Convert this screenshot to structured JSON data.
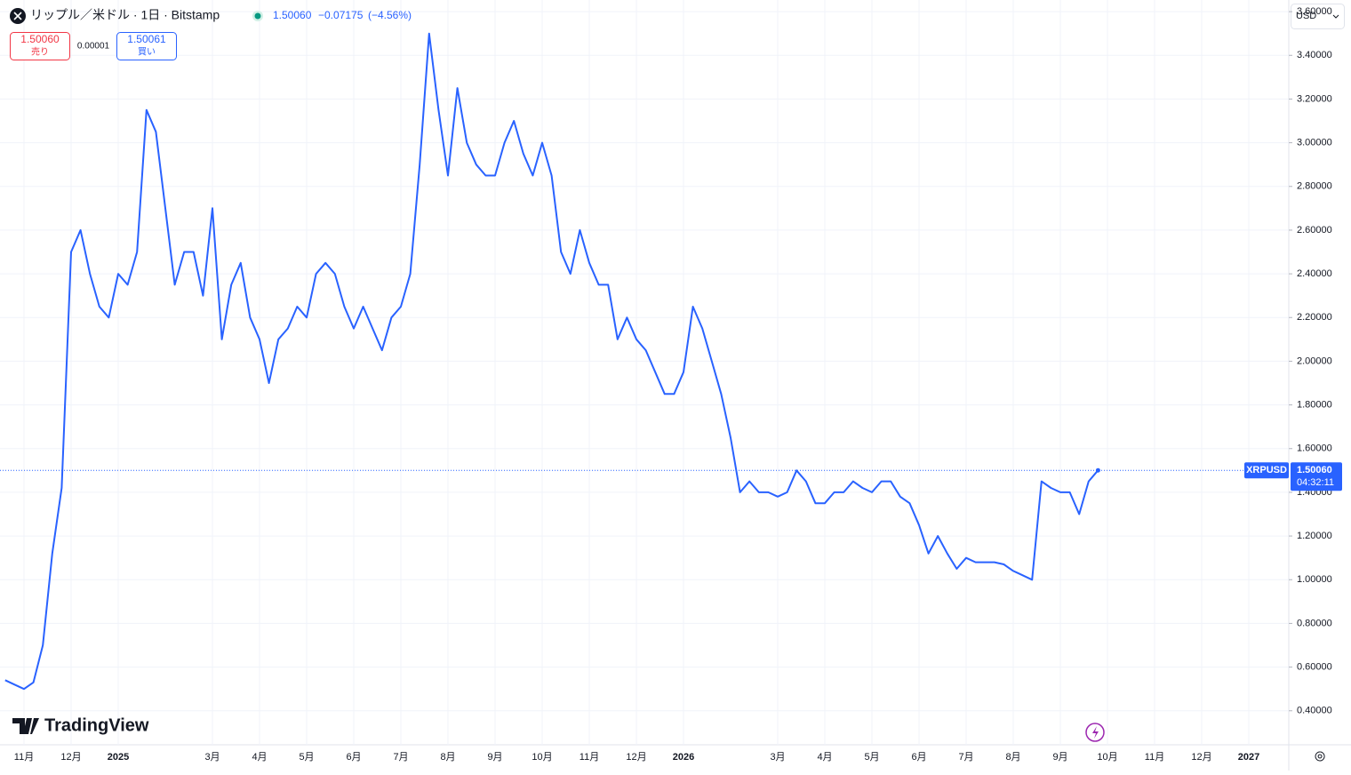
{
  "header": {
    "title": "リップル／米ドル · 1日 · Bitstamp",
    "price": "1.50060",
    "change": "−0.07175",
    "change_pct": "(−4.56%)",
    "sell_price": "1.50060",
    "sell_label": "売り",
    "spread": "0.00001",
    "buy_price": "1.50061",
    "buy_label": "買い",
    "currency": "USD",
    "logo": "TradingView"
  },
  "chart_data": {
    "type": "line",
    "categories": [
      null,
      null,
      "11月",
      null,
      null,
      null,
      null,
      "12月",
      null,
      null,
      null,
      null,
      "2025",
      null,
      null,
      null,
      null,
      null,
      null,
      null,
      null,
      null,
      "3月",
      null,
      null,
      null,
      null,
      "4月",
      null,
      null,
      null,
      null,
      "5月",
      null,
      null,
      null,
      null,
      "6月",
      null,
      null,
      null,
      null,
      "7月",
      null,
      null,
      null,
      null,
      "8月",
      null,
      null,
      null,
      null,
      "9月",
      null,
      null,
      null,
      null,
      "10月",
      null,
      null,
      null,
      null,
      "11月",
      null,
      null,
      null,
      null,
      "12月",
      null,
      null,
      null,
      null,
      "2026",
      null,
      null,
      null,
      null,
      null,
      null,
      null,
      null,
      null,
      "3月",
      null,
      null,
      null,
      null,
      "4月",
      null,
      null,
      null,
      null,
      "5月",
      null,
      null,
      null,
      null,
      "6月",
      null,
      null,
      null,
      null,
      "7月",
      null,
      null,
      null,
      null,
      "8月",
      null,
      null,
      null,
      null,
      "9月",
      null,
      null,
      null,
      null,
      "10月",
      null,
      null,
      null,
      null,
      "11月",
      null,
      null,
      null,
      null,
      "12月",
      null,
      null,
      null,
      null,
      "2027",
      null,
      null
    ],
    "series": [
      {
        "name": "XRPUSD",
        "color": "#2962ff",
        "values": [
          0.54,
          0.52,
          0.5,
          0.53,
          0.7,
          1.12,
          1.42,
          2.5,
          2.6,
          2.4,
          2.25,
          2.2,
          2.4,
          2.35,
          2.5,
          3.15,
          3.05,
          2.7,
          2.35,
          2.5,
          2.5,
          2.3,
          2.7,
          2.1,
          2.35,
          2.45,
          2.2,
          2.1,
          1.9,
          2.1,
          2.15,
          2.25,
          2.2,
          2.4,
          2.45,
          2.4,
          2.25,
          2.15,
          2.25,
          2.15,
          2.05,
          2.2,
          2.25,
          2.4,
          2.9,
          3.5,
          3.15,
          2.85,
          3.25,
          3.0,
          2.9,
          2.85,
          2.85,
          3.0,
          3.1,
          2.95,
          2.85,
          3.0,
          2.85,
          2.5,
          2.4,
          2.6,
          2.45,
          2.35,
          2.35,
          2.1,
          2.2,
          2.1,
          2.05,
          1.95,
          1.85,
          1.85,
          1.95,
          2.25,
          2.15,
          2.0,
          1.85,
          1.65,
          1.4,
          1.45,
          1.4,
          1.4,
          1.38,
          1.4,
          1.5,
          1.45,
          1.35,
          1.35,
          1.4,
          1.4,
          1.45,
          1.42,
          1.4,
          1.45,
          1.45,
          1.38,
          1.35,
          1.25,
          1.12,
          1.2,
          1.12,
          1.05,
          1.1,
          1.08,
          1.08,
          1.08,
          1.07,
          1.04,
          1.02,
          1.0,
          1.45,
          1.42,
          1.4,
          1.4,
          1.3,
          1.45,
          1.5006,
          null,
          null,
          null,
          null,
          null,
          null,
          null,
          null,
          null,
          null,
          null,
          null,
          null,
          null,
          null,
          null,
          null,
          null
        ]
      }
    ],
    "last_price": {
      "value": 1.5006,
      "label": "1.50060"
    },
    "countdown": "04:32:11",
    "ylim": [
      0.2444,
      3.6533
    ],
    "yticks": [
      {
        "value": 0.4,
        "label": "0.40000"
      },
      {
        "value": 0.6,
        "label": "0.60000"
      },
      {
        "value": 0.8,
        "label": "0.80000"
      },
      {
        "value": 1.0,
        "label": "1.00000"
      },
      {
        "value": 1.2,
        "label": "1.20000"
      },
      {
        "value": 1.4,
        "label": "1.40000"
      },
      {
        "value": 1.6,
        "label": "1.60000"
      },
      {
        "value": 1.8,
        "label": "1.80000"
      },
      {
        "value": 2.0,
        "label": "2.00000"
      },
      {
        "value": 2.2,
        "label": "2.20000"
      },
      {
        "value": 2.4,
        "label": "2.40000"
      },
      {
        "value": 2.6,
        "label": "2.60000"
      },
      {
        "value": 2.8,
        "label": "2.80000"
      },
      {
        "value": 3.0,
        "label": "3.00000"
      },
      {
        "value": 3.2,
        "label": "3.20000"
      },
      {
        "value": 3.4,
        "label": "3.40000"
      },
      {
        "value": 3.6,
        "label": "3.60000"
      }
    ],
    "grid": true
  }
}
